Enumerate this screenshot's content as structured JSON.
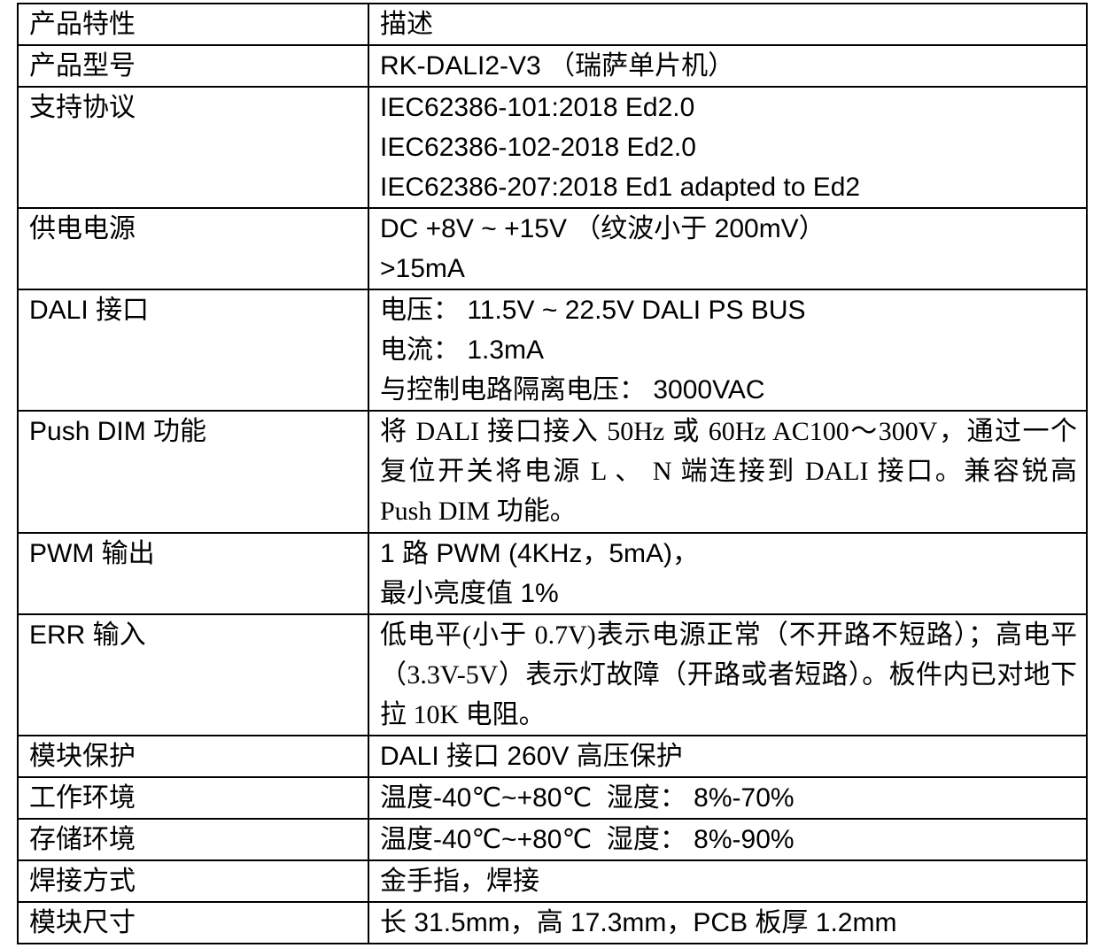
{
  "table": {
    "header": {
      "col1": "产品特性",
      "col2": "描述"
    },
    "rows": [
      {
        "label": "产品型号",
        "lines": [
          "RK-DALI2-V3 （瑞萨单片机）"
        ]
      },
      {
        "label": "支持协议",
        "lines": [
          "IEC62386-101:2018 Ed2.0",
          "IEC62386-102-2018 Ed2.0",
          "IEC62386-207:2018 Ed1 adapted to Ed2"
        ]
      },
      {
        "label": "供电电源",
        "lines": [
          "DC +8V ~ +15V （纹波小于 200mV）",
          ">15mA"
        ]
      },
      {
        "label": "DALI 接口",
        "lines": [
          "电压： 11.5V ~ 22.5V DALI PS BUS",
          "电流： 1.3mA",
          "与控制电路隔离电压： 3000VAC"
        ]
      },
      {
        "label": "Push DIM 功能",
        "lines": [
          "将 DALI 接口接入 50Hz 或 60Hz AC100～300V，通过一个复位开关将电源 L 、 N 端连接到 DALI 接口。兼容锐高 Push DIM 功能。"
        ]
      },
      {
        "label": "PWM 输出",
        "lines": [
          "1 路 PWM (4KHz，5mA)，",
          "最小亮度值 1%"
        ]
      },
      {
        "label": "ERR 输入",
        "lines": [
          "低电平(小于 0.7V)表示电源正常（不开路不短路）；高电平（3.3V-5V）表示灯故障（开路或者短路）。板件内已对地下拉 10K 电阻。"
        ]
      },
      {
        "label": "模块保护",
        "lines": [
          "DALI 接口 260V 高压保护"
        ]
      },
      {
        "label": "工作环境",
        "lines": [
          "温度-40℃~+80℃  湿度： 8%-70%"
        ]
      },
      {
        "label": "存储环境",
        "lines": [
          "温度-40℃~+80℃  湿度： 8%-90%"
        ]
      },
      {
        "label": "焊接方式",
        "lines": [
          "金手指，焊接"
        ]
      },
      {
        "label": "模块尺寸",
        "lines": [
          "长 31.5mm，高 17.3mm，PCB 板厚 1.2mm"
        ]
      }
    ],
    "border_color": "#000000",
    "background_color": "#ffffff",
    "text_color": "#000000"
  }
}
